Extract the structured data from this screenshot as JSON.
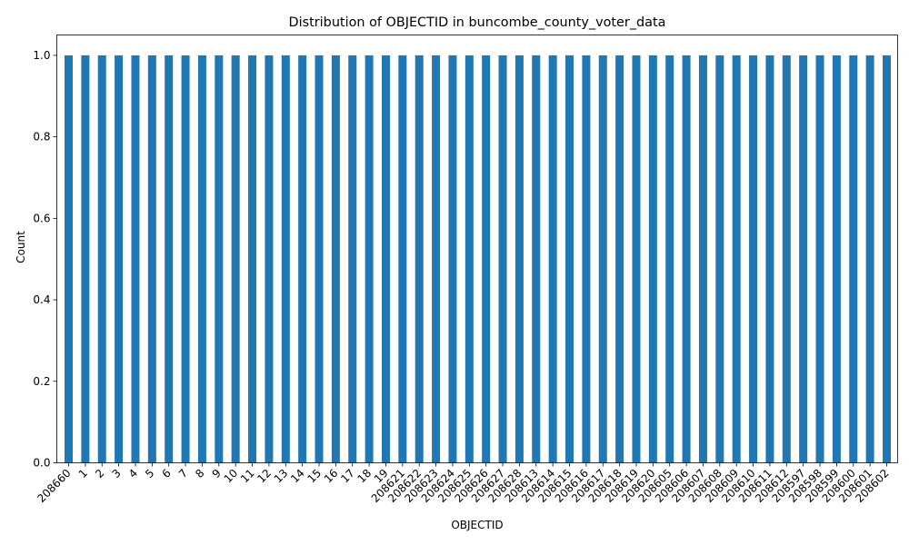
{
  "chart_data": {
    "type": "bar",
    "title": "Distribution of OBJECTID in buncombe_county_voter_data",
    "xlabel": "OBJECTID",
    "ylabel": "Count",
    "ylim": [
      0,
      1.05
    ],
    "yticks": [
      "0.0",
      "0.2",
      "0.4",
      "0.6",
      "0.8",
      "1.0"
    ],
    "grid": false,
    "legend": "none",
    "bar_color": "#1f77b4",
    "categories": [
      "208660",
      "1",
      "2",
      "3",
      "4",
      "5",
      "6",
      "7",
      "8",
      "9",
      "10",
      "11",
      "12",
      "13",
      "14",
      "15",
      "16",
      "17",
      "18",
      "19",
      "208621",
      "208622",
      "208623",
      "208624",
      "208625",
      "208626",
      "208627",
      "208628",
      "208613",
      "208614",
      "208615",
      "208616",
      "208617",
      "208618",
      "208619",
      "208620",
      "208605",
      "208606",
      "208607",
      "208608",
      "208609",
      "208610",
      "208611",
      "208612",
      "208597",
      "208598",
      "208599",
      "208600",
      "208601",
      "208602"
    ],
    "values": [
      1,
      1,
      1,
      1,
      1,
      1,
      1,
      1,
      1,
      1,
      1,
      1,
      1,
      1,
      1,
      1,
      1,
      1,
      1,
      1,
      1,
      1,
      1,
      1,
      1,
      1,
      1,
      1,
      1,
      1,
      1,
      1,
      1,
      1,
      1,
      1,
      1,
      1,
      1,
      1,
      1,
      1,
      1,
      1,
      1,
      1,
      1,
      1,
      1,
      1
    ]
  }
}
